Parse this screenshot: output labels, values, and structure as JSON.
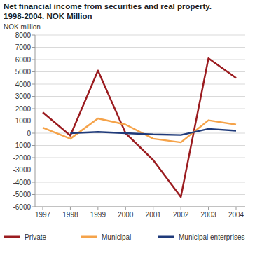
{
  "chart_data": {
    "type": "line",
    "title": "Net financial income from securities and real property.",
    "subtitle": "1998-2004. NOK Million",
    "y_label": "NOK million",
    "categories": [
      "1997",
      "1998",
      "1999",
      "2000",
      "2001",
      "2002",
      "2003",
      "2004"
    ],
    "series": [
      {
        "name": "Private",
        "color": "#9b1c20",
        "values": [
          1700,
          -200,
          5100,
          0,
          -2200,
          -5200,
          6100,
          4500
        ]
      },
      {
        "name": "Municipal",
        "color": "#f5a34a",
        "values": [
          450,
          -450,
          1200,
          700,
          -450,
          -750,
          1050,
          700
        ]
      },
      {
        "name": "Municipal enterprises",
        "color": "#1f3a7a",
        "values": [
          null,
          0,
          100,
          0,
          -100,
          -150,
          350,
          200
        ]
      }
    ],
    "ylim": [
      -6000,
      8000
    ],
    "yticks": [
      -6000,
      -5000,
      -4000,
      -3000,
      -2000,
      -1000,
      0,
      1000,
      2000,
      3000,
      4000,
      5000,
      6000,
      7000,
      8000
    ],
    "grid": true,
    "legend": "bottom"
  }
}
